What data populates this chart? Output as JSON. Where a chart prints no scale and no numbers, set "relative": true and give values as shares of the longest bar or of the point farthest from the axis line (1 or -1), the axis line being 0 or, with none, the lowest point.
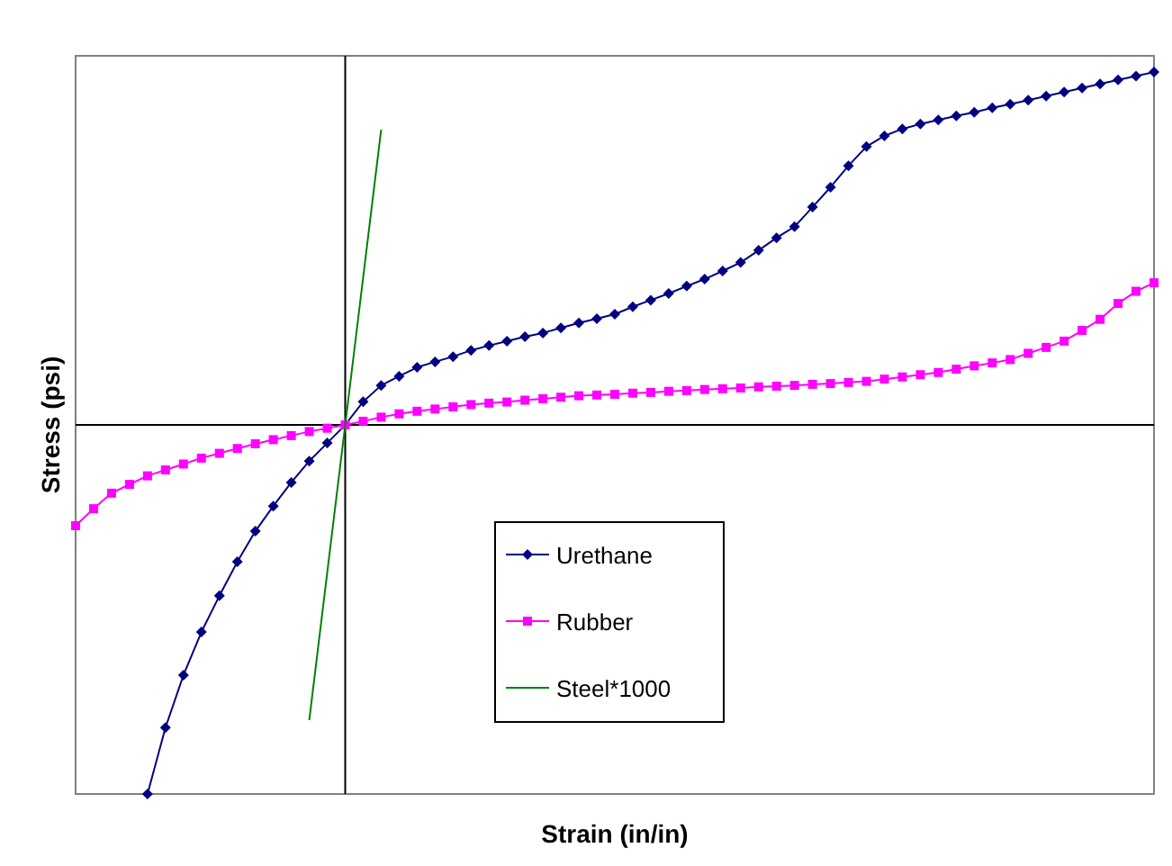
{
  "chart_data": {
    "type": "line",
    "relative": true,
    "xlabel": "Strain (in/in)",
    "ylabel": "Stress (psi)",
    "legend": "bottom",
    "categories": [
      null,
      null,
      null,
      null,
      null,
      null,
      null,
      null,
      null,
      null,
      null,
      null,
      null,
      null,
      null,
      null,
      null,
      null,
      null,
      null,
      null,
      null,
      null,
      null,
      null,
      null,
      null,
      null,
      null,
      null,
      null,
      null,
      null,
      null,
      null,
      null,
      null,
      null,
      null,
      null,
      null,
      null,
      null,
      null,
      null,
      null,
      null,
      null,
      null,
      null,
      null,
      null,
      null,
      null,
      null,
      null,
      null,
      null,
      null,
      null,
      null
    ],
    "series": [
      {
        "name": "Urethane",
        "color": "#000080",
        "marker": "diamond",
        "values": [
          null,
          null,
          null,
          null,
          -1,
          -0.82,
          -0.678,
          -0.561,
          -0.463,
          -0.371,
          -0.288,
          -0.22,
          -0.156,
          -0.098,
          -0.049,
          0,
          0.063,
          0.107,
          0.132,
          0.156,
          0.171,
          0.185,
          0.202,
          0.215,
          0.227,
          0.239,
          0.249,
          0.263,
          0.276,
          0.288,
          0.3,
          0.32,
          0.338,
          0.356,
          0.376,
          0.395,
          0.417,
          0.44,
          0.473,
          0.507,
          0.537,
          0.59,
          0.644,
          0.702,
          0.754,
          0.783,
          0.802,
          0.815,
          0.826,
          0.837,
          0.847,
          0.859,
          0.869,
          0.88,
          0.891,
          0.902,
          0.913,
          0.924,
          0.935,
          0.945,
          0.956
        ]
      },
      {
        "name": "Rubber",
        "color": "#ff00ff",
        "marker": "square",
        "values": [
          -0.273,
          -0.227,
          -0.185,
          -0.161,
          -0.138,
          -0.122,
          -0.106,
          -0.09,
          -0.077,
          -0.064,
          -0.051,
          -0.04,
          -0.029,
          -0.018,
          -0.009,
          0,
          0.01,
          0.021,
          0.03,
          0.037,
          0.043,
          0.049,
          0.055,
          0.059,
          0.062,
          0.067,
          0.071,
          0.075,
          0.079,
          0.081,
          0.083,
          0.086,
          0.088,
          0.091,
          0.093,
          0.096,
          0.098,
          0.1,
          0.103,
          0.105,
          0.107,
          0.11,
          0.112,
          0.115,
          0.118,
          0.124,
          0.13,
          0.136,
          0.142,
          0.151,
          0.16,
          0.168,
          0.177,
          0.194,
          0.21,
          0.227,
          0.256,
          0.286,
          0.329,
          0.362,
          0.385
        ]
      },
      {
        "name": "Steel*1000",
        "color": "#008000",
        "marker": "none",
        "values": [
          null,
          null,
          null,
          null,
          null,
          null,
          null,
          null,
          null,
          null,
          null,
          null,
          null,
          -0.8,
          -0.4,
          0,
          0.4,
          0.8,
          null,
          null,
          null,
          null,
          null,
          null,
          null,
          null,
          null,
          null,
          null,
          null,
          null,
          null,
          null,
          null,
          null,
          null,
          null,
          null,
          null,
          null,
          null,
          null,
          null,
          null,
          null,
          null,
          null,
          null,
          null,
          null,
          null,
          null,
          null,
          null,
          null,
          null,
          null,
          null,
          null,
          null,
          null
        ]
      }
    ]
  }
}
